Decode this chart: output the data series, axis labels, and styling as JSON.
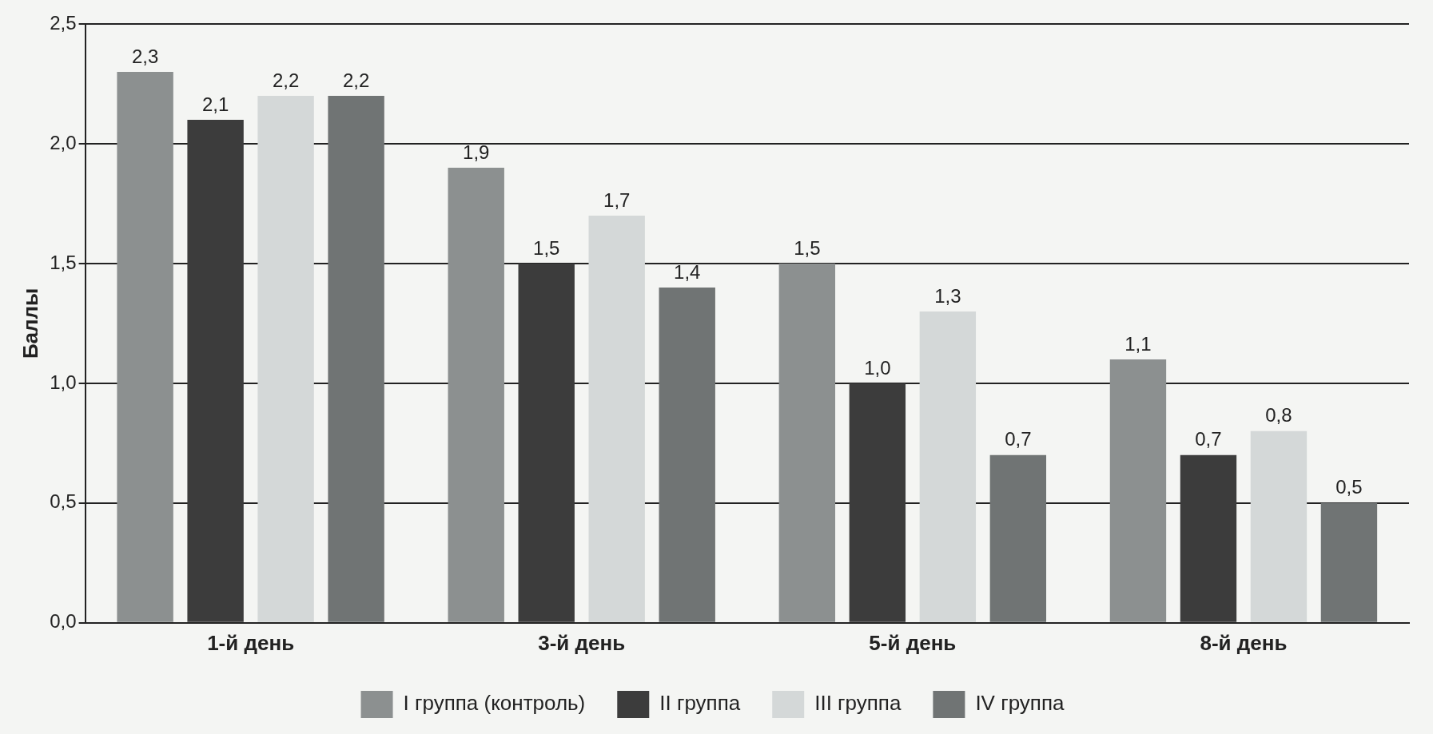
{
  "chart_data": {
    "type": "bar",
    "ylabel": "Баллы",
    "categories": [
      "1-й день",
      "3-й день",
      "5-й день",
      "8-й день"
    ],
    "series": [
      {
        "name": "I группа (контроль)",
        "color": "#8c9090",
        "values": [
          2.3,
          1.9,
          1.5,
          1.1
        ],
        "value_labels": [
          "2,3",
          "1,9",
          "1,5",
          "1,1"
        ]
      },
      {
        "name": "II группа",
        "color": "#3c3c3c",
        "values": [
          2.1,
          1.5,
          1.0,
          0.7
        ],
        "value_labels": [
          "2,1",
          "1,5",
          "1,0",
          "0,7"
        ]
      },
      {
        "name": "III группа",
        "color": "#d4d8d8",
        "values": [
          2.2,
          1.7,
          1.3,
          0.8
        ],
        "value_labels": [
          "2,2",
          "1,7",
          "1,3",
          "0,8"
        ]
      },
      {
        "name": "IV группа",
        "color": "#707474",
        "values": [
          2.2,
          1.4,
          0.7,
          0.5
        ],
        "value_labels": [
          "2,2",
          "1,4",
          "0,7",
          "0,5"
        ]
      }
    ],
    "ylim": [
      0,
      2.5
    ],
    "yticks": [
      {
        "value": 0,
        "label": "0,0"
      },
      {
        "value": 0.5,
        "label": "0,5"
      },
      {
        "value": 1,
        "label": "1,0"
      },
      {
        "value": 1.5,
        "label": "1,5"
      },
      {
        "value": 2,
        "label": "2,0"
      },
      {
        "value": 2.5,
        "label": "2,5"
      }
    ],
    "grid": "y",
    "legend": "bottom"
  }
}
